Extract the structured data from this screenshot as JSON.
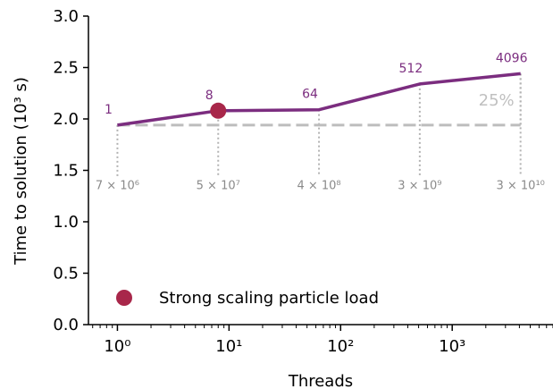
{
  "chart_data": {
    "type": "line",
    "xlabel": "Threads",
    "ylabel": "Time to solution (10³ s)",
    "xscale": "log",
    "xlim": [
      0.55,
      8000
    ],
    "ylim": [
      0,
      3.0
    ],
    "x_ticks": [
      {
        "value": 1,
        "label": "10⁰"
      },
      {
        "value": 10,
        "label": "10¹"
      },
      {
        "value": 100,
        "label": "10²"
      },
      {
        "value": 1000,
        "label": "10³"
      }
    ],
    "y_ticks": [
      {
        "value": 0.0,
        "label": "0.0"
      },
      {
        "value": 0.5,
        "label": "0.5"
      },
      {
        "value": 1.0,
        "label": "1.0"
      },
      {
        "value": 1.5,
        "label": "1.5"
      },
      {
        "value": 2.0,
        "label": "2.0"
      },
      {
        "value": 2.5,
        "label": "2.5"
      },
      {
        "value": 3.0,
        "label": "3.0"
      }
    ],
    "series": [
      {
        "name": "",
        "color": "#7b2d7f",
        "x": [
          1,
          8,
          64,
          512,
          4096
        ],
        "y": [
          1.94,
          2.08,
          2.09,
          2.34,
          2.44
        ],
        "point_labels": [
          "1",
          "8",
          "64",
          "512",
          "4096"
        ]
      }
    ],
    "highlight_point": {
      "x": 8,
      "y": 2.08,
      "color": "#a8274a"
    },
    "particle_loads": [
      {
        "x": 1,
        "label": "7 × 10⁶"
      },
      {
        "x": 8,
        "label": "5 × 10⁷"
      },
      {
        "x": 64,
        "label": "4 × 10⁸"
      },
      {
        "x": 512,
        "label": "3 × 10⁹"
      },
      {
        "x": 4096,
        "label": "3 × 10¹⁰"
      }
    ],
    "baseline": {
      "y": 1.94,
      "x_from": 1,
      "x_to": 4096,
      "color": "#bdbdbd"
    },
    "annotation": {
      "text": "25%"
    },
    "legend": {
      "label": "Strong scaling particle load",
      "marker_color": "#a8274a",
      "placement": "lower-left"
    },
    "grid": false
  }
}
